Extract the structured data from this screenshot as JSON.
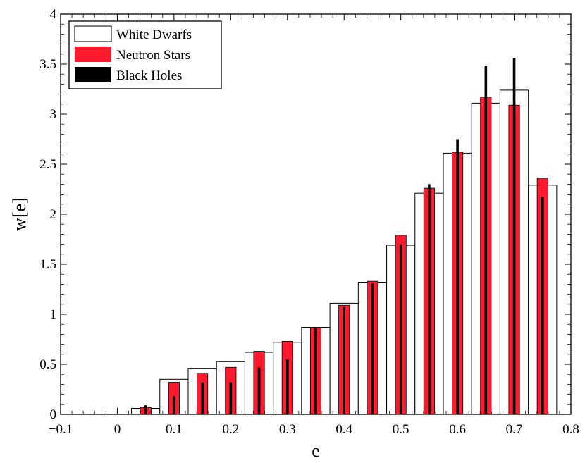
{
  "chart_data": {
    "type": "bar",
    "title": "",
    "xlabel": "e",
    "ylabel": "w[e]",
    "xlim": [
      -0.1,
      0.8
    ],
    "ylim": [
      0,
      4
    ],
    "grid": false,
    "legend_position": "top-left",
    "x_ticks": [
      -0.1,
      0,
      0.1,
      0.2,
      0.3,
      0.4,
      0.5,
      0.6,
      0.7,
      0.8
    ],
    "x_tick_labels": [
      "−0.1",
      "0",
      "0.1",
      "0.2",
      "0.3",
      "0.4",
      "0.5",
      "0.6",
      "0.7",
      "0.8"
    ],
    "y_ticks": [
      0,
      0.5,
      1,
      1.5,
      2,
      2.5,
      3,
      3.5,
      4
    ],
    "y_tick_labels": [
      "0",
      "0.5",
      "1",
      "1.5",
      "2",
      "2.5",
      "3",
      "3.5",
      "4"
    ],
    "bin_width": 0.05,
    "bin_centers": [
      0.05,
      0.1,
      0.15,
      0.2,
      0.25,
      0.3,
      0.35,
      0.4,
      0.45,
      0.5,
      0.55,
      0.6,
      0.65,
      0.7,
      0.75
    ],
    "series": [
      {
        "name": "White Dwarfs",
        "color": "#ffffff",
        "values": [
          0.06,
          0.35,
          0.46,
          0.53,
          0.62,
          0.72,
          0.87,
          1.11,
          1.32,
          1.69,
          2.21,
          2.61,
          3.11,
          3.24,
          2.29
        ]
      },
      {
        "name": "Neutron Stars",
        "color": "#ff1a2e",
        "values": [
          0.07,
          0.32,
          0.41,
          0.47,
          0.63,
          0.73,
          0.87,
          1.09,
          1.33,
          1.79,
          2.26,
          2.62,
          3.17,
          3.09,
          2.36
        ]
      },
      {
        "name": "Black Holes",
        "color": "#000000",
        "values": [
          0.09,
          0.18,
          0.32,
          0.32,
          0.47,
          0.55,
          0.86,
          1.08,
          1.31,
          1.7,
          2.3,
          2.75,
          3.48,
          3.56,
          2.17
        ]
      }
    ]
  }
}
